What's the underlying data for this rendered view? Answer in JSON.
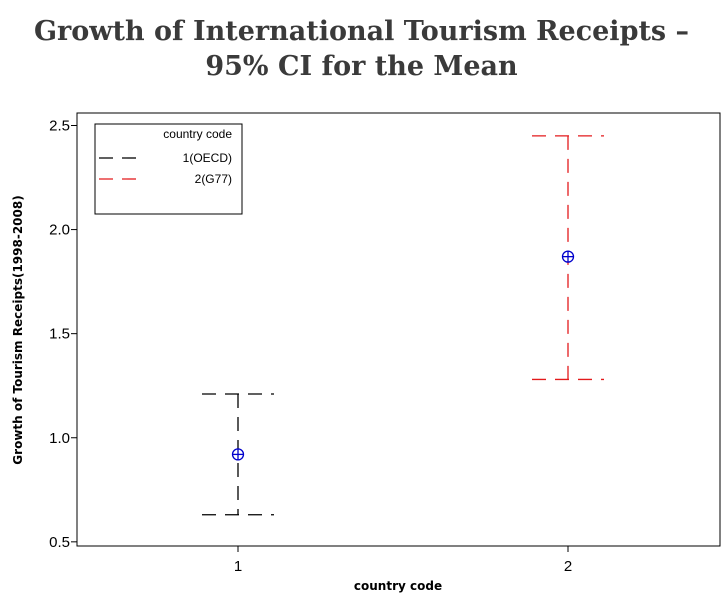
{
  "chart_data": {
    "type": "interval",
    "title_lines": [
      "Growth of International Tourism Receipts –",
      "95% CI for the Mean"
    ],
    "xlabel": "country code",
    "ylabel": "Growth of Tourism Receipts(1998-2008)",
    "categories": [
      "1",
      "2"
    ],
    "yticks": [
      "0.5",
      "1.0",
      "1.5",
      "2.0",
      "2.5"
    ],
    "ylim": [
      0.48,
      2.56
    ],
    "series": [
      {
        "category": "1",
        "legend_label": "1(OECD)",
        "lower": 0.63,
        "upper": 1.21,
        "mean": 0.92,
        "color": "#000000"
      },
      {
        "category": "2",
        "legend_label": "2(G77)",
        "lower": 1.28,
        "upper": 2.45,
        "mean": 1.87,
        "color": "#e31a1c"
      }
    ],
    "mean_marker_color": "#0000cc",
    "legend": {
      "title": "country code",
      "position": "top-left"
    },
    "grid": false
  }
}
